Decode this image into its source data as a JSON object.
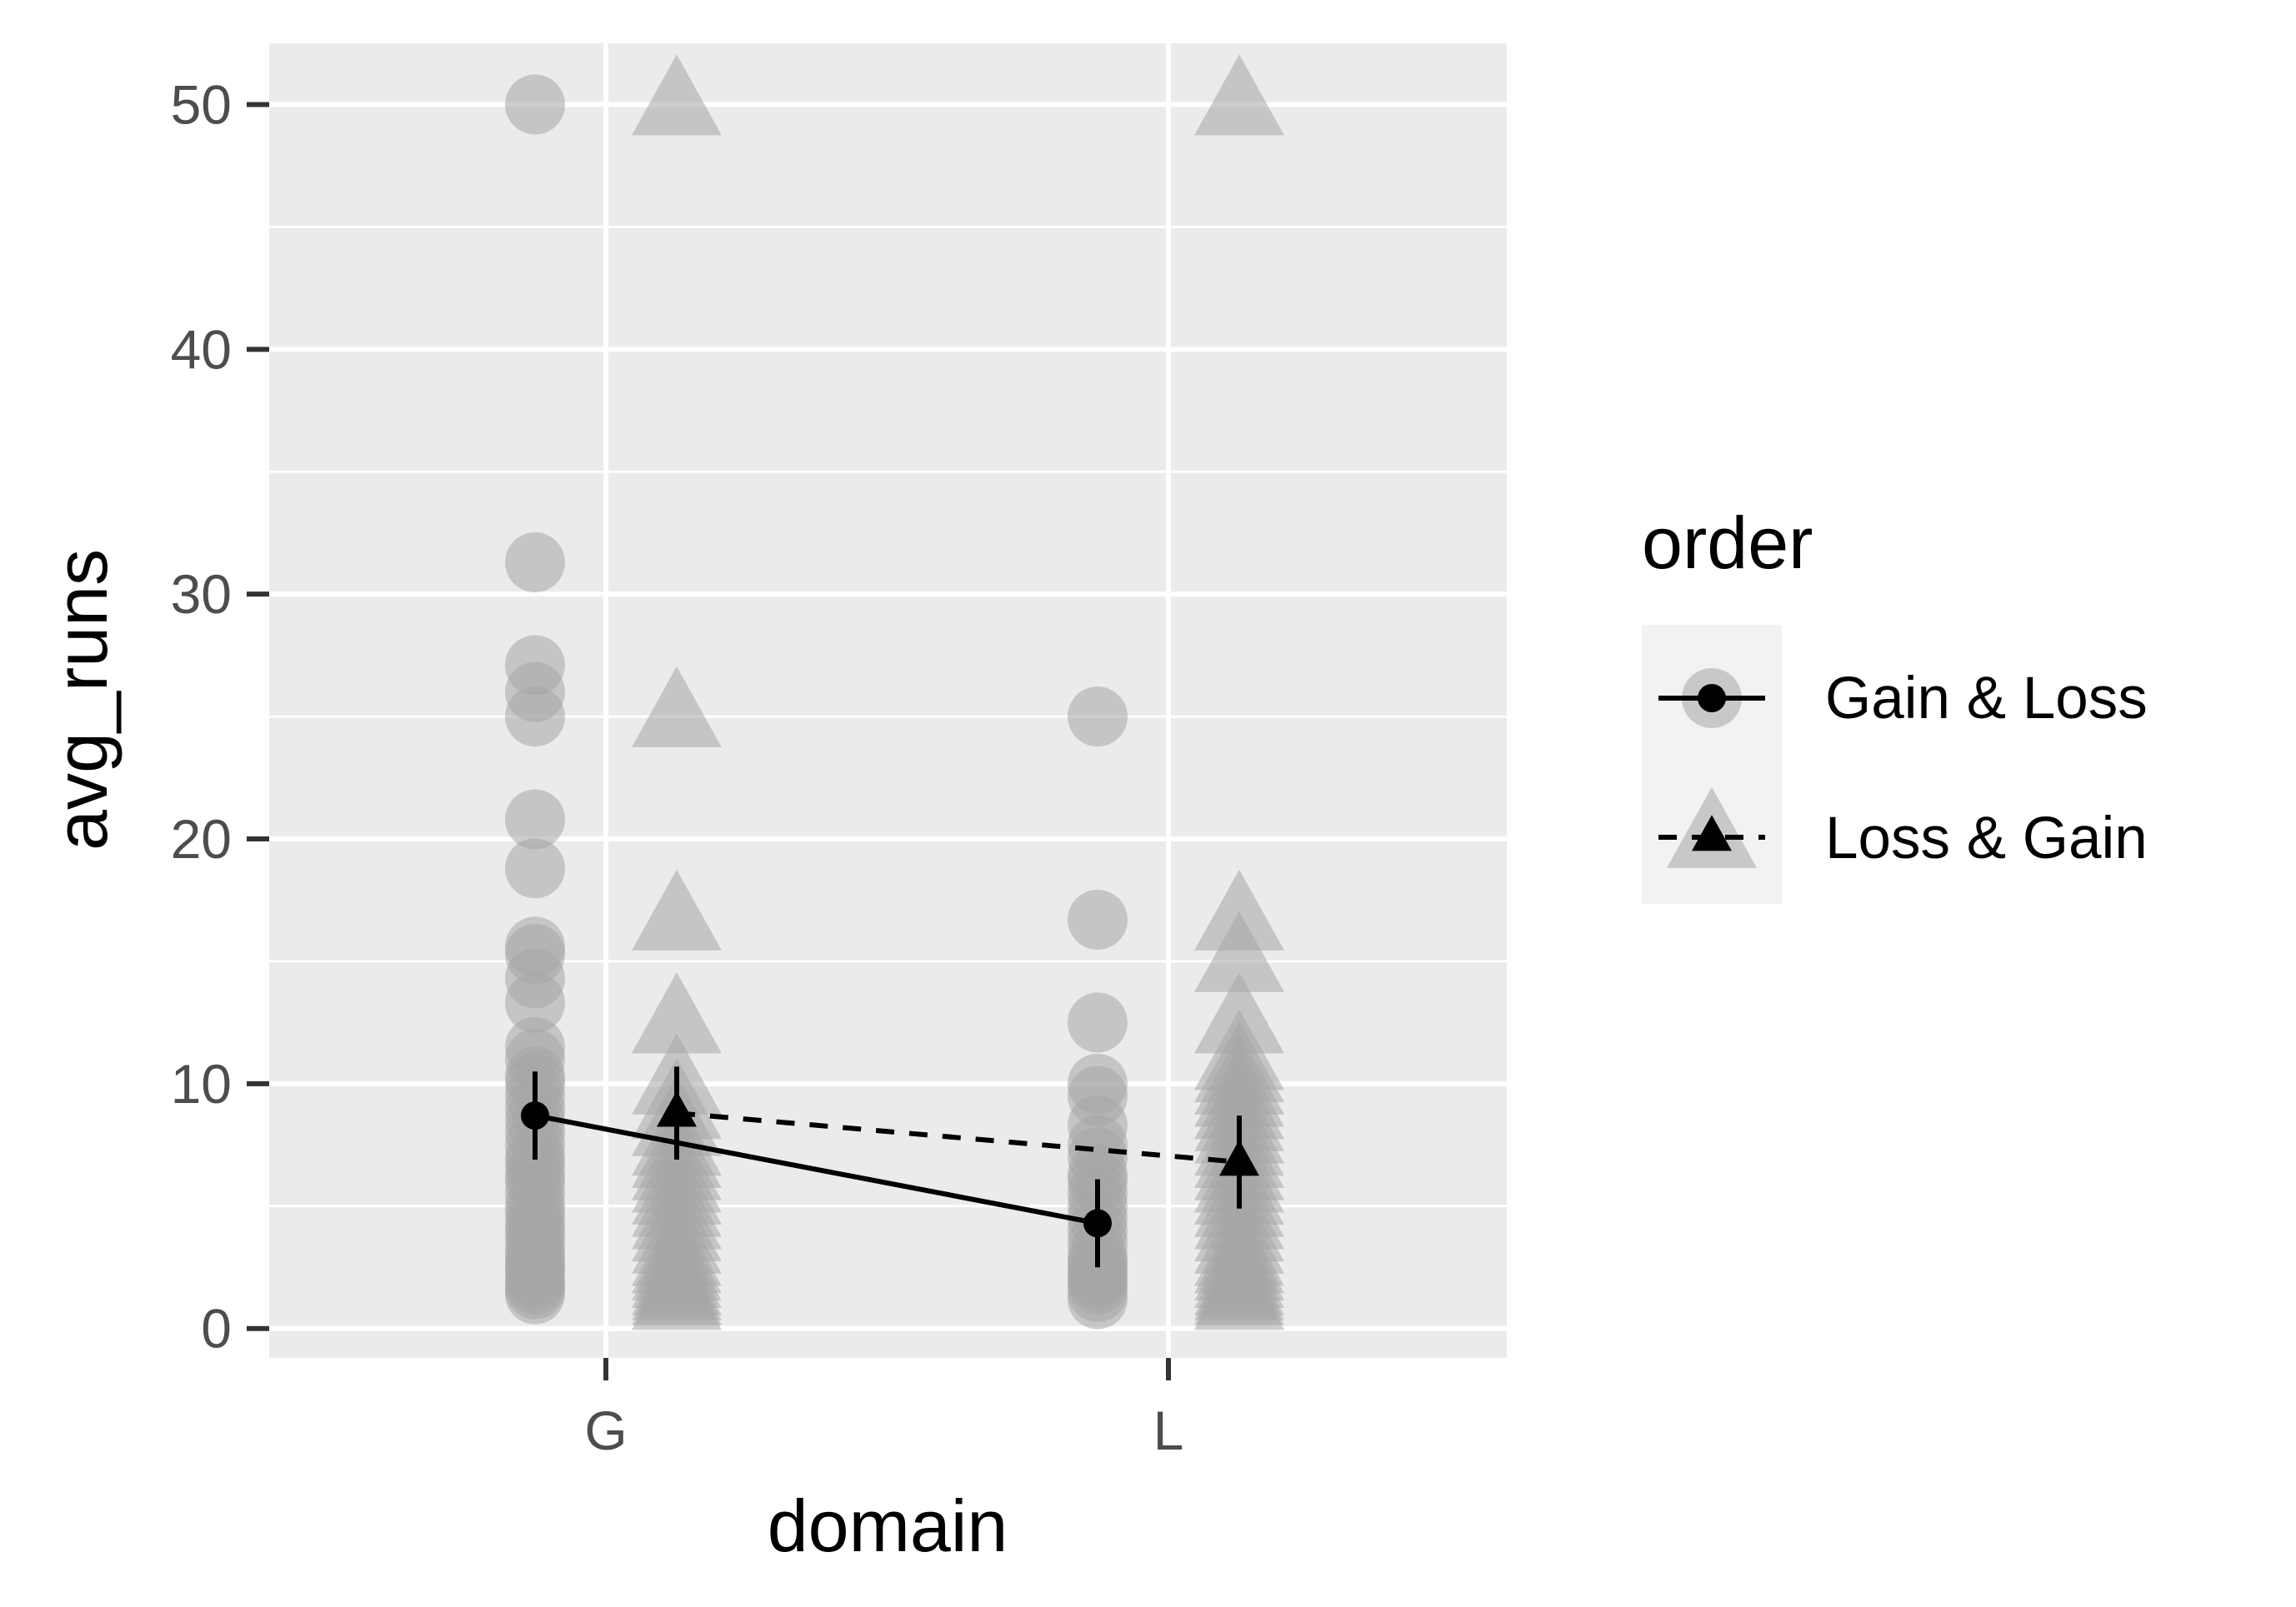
{
  "chart_data": {
    "type": "scatter",
    "title": "",
    "xlabel": "domain",
    "ylabel": "avg_runs",
    "categories": [
      "G",
      "L"
    ],
    "ylim": [
      -1.2,
      52.5
    ],
    "yticks": [
      0,
      10,
      20,
      30,
      40,
      50
    ],
    "grid": true,
    "legend": {
      "title": "order",
      "position": "right",
      "entries": [
        "Gain & Loss",
        "Loss & Gain"
      ]
    },
    "colors": {
      "panel": "#ebebeb",
      "grid": "#ffffff",
      "raw_points": "#a6a6a6",
      "summary": "#000000"
    },
    "series": [
      {
        "name": "Gain & Loss",
        "shape": "circle",
        "line": "solid",
        "raw": {
          "G": [
            50,
            31.3,
            27.1,
            26,
            25,
            20.8,
            18.8,
            15.6,
            15.3,
            14.3,
            13.3,
            11.5,
            11,
            10.3,
            10,
            9.5,
            9,
            8.5,
            8,
            7.5,
            7,
            6.7,
            6.3,
            6,
            5.5,
            5,
            4.7,
            4.3,
            4,
            3.7,
            3.3,
            3,
            2.7,
            2.5,
            2.3,
            2,
            1.8,
            1.6,
            1.4
          ],
          "L": [
            25,
            16.7,
            12.5,
            10,
            9.5,
            8.3,
            7.5,
            7,
            6.3,
            6,
            5.5,
            5,
            4.5,
            4,
            3.5,
            3,
            2.7,
            2.5,
            2.2,
            2,
            1.8,
            1.5,
            1.2
          ]
        },
        "mean": {
          "G": 8.7,
          "L": 4.3
        },
        "ci": {
          "G": [
            6.9,
            10.5
          ],
          "L": [
            2.5,
            6.1
          ]
        }
      },
      {
        "name": "Loss & Gain",
        "shape": "triangle",
        "line": "dashed",
        "raw": {
          "G": [
            50,
            25,
            16.7,
            12.5,
            10,
            9,
            8.3,
            7.5,
            7,
            6.5,
            6,
            5.5,
            5,
            4.5,
            4,
            3.5,
            3,
            2.7,
            2.4,
            2.1,
            1.8,
            1.6,
            1.4,
            1.2
          ],
          "L": [
            50,
            16.7,
            15,
            12.5,
            11,
            10.5,
            10,
            9.5,
            9,
            8.5,
            8,
            7.5,
            7,
            6.5,
            6,
            5.5,
            5,
            4.5,
            4,
            3.5,
            3,
            2.7,
            2.4,
            2.1,
            1.8,
            1.6,
            1.4,
            1.2
          ]
        },
        "mean": {
          "G": 8.8,
          "L": 6.8
        },
        "ci": {
          "G": [
            6.9,
            10.7
          ],
          "L": [
            4.9,
            8.7
          ]
        }
      }
    ]
  }
}
